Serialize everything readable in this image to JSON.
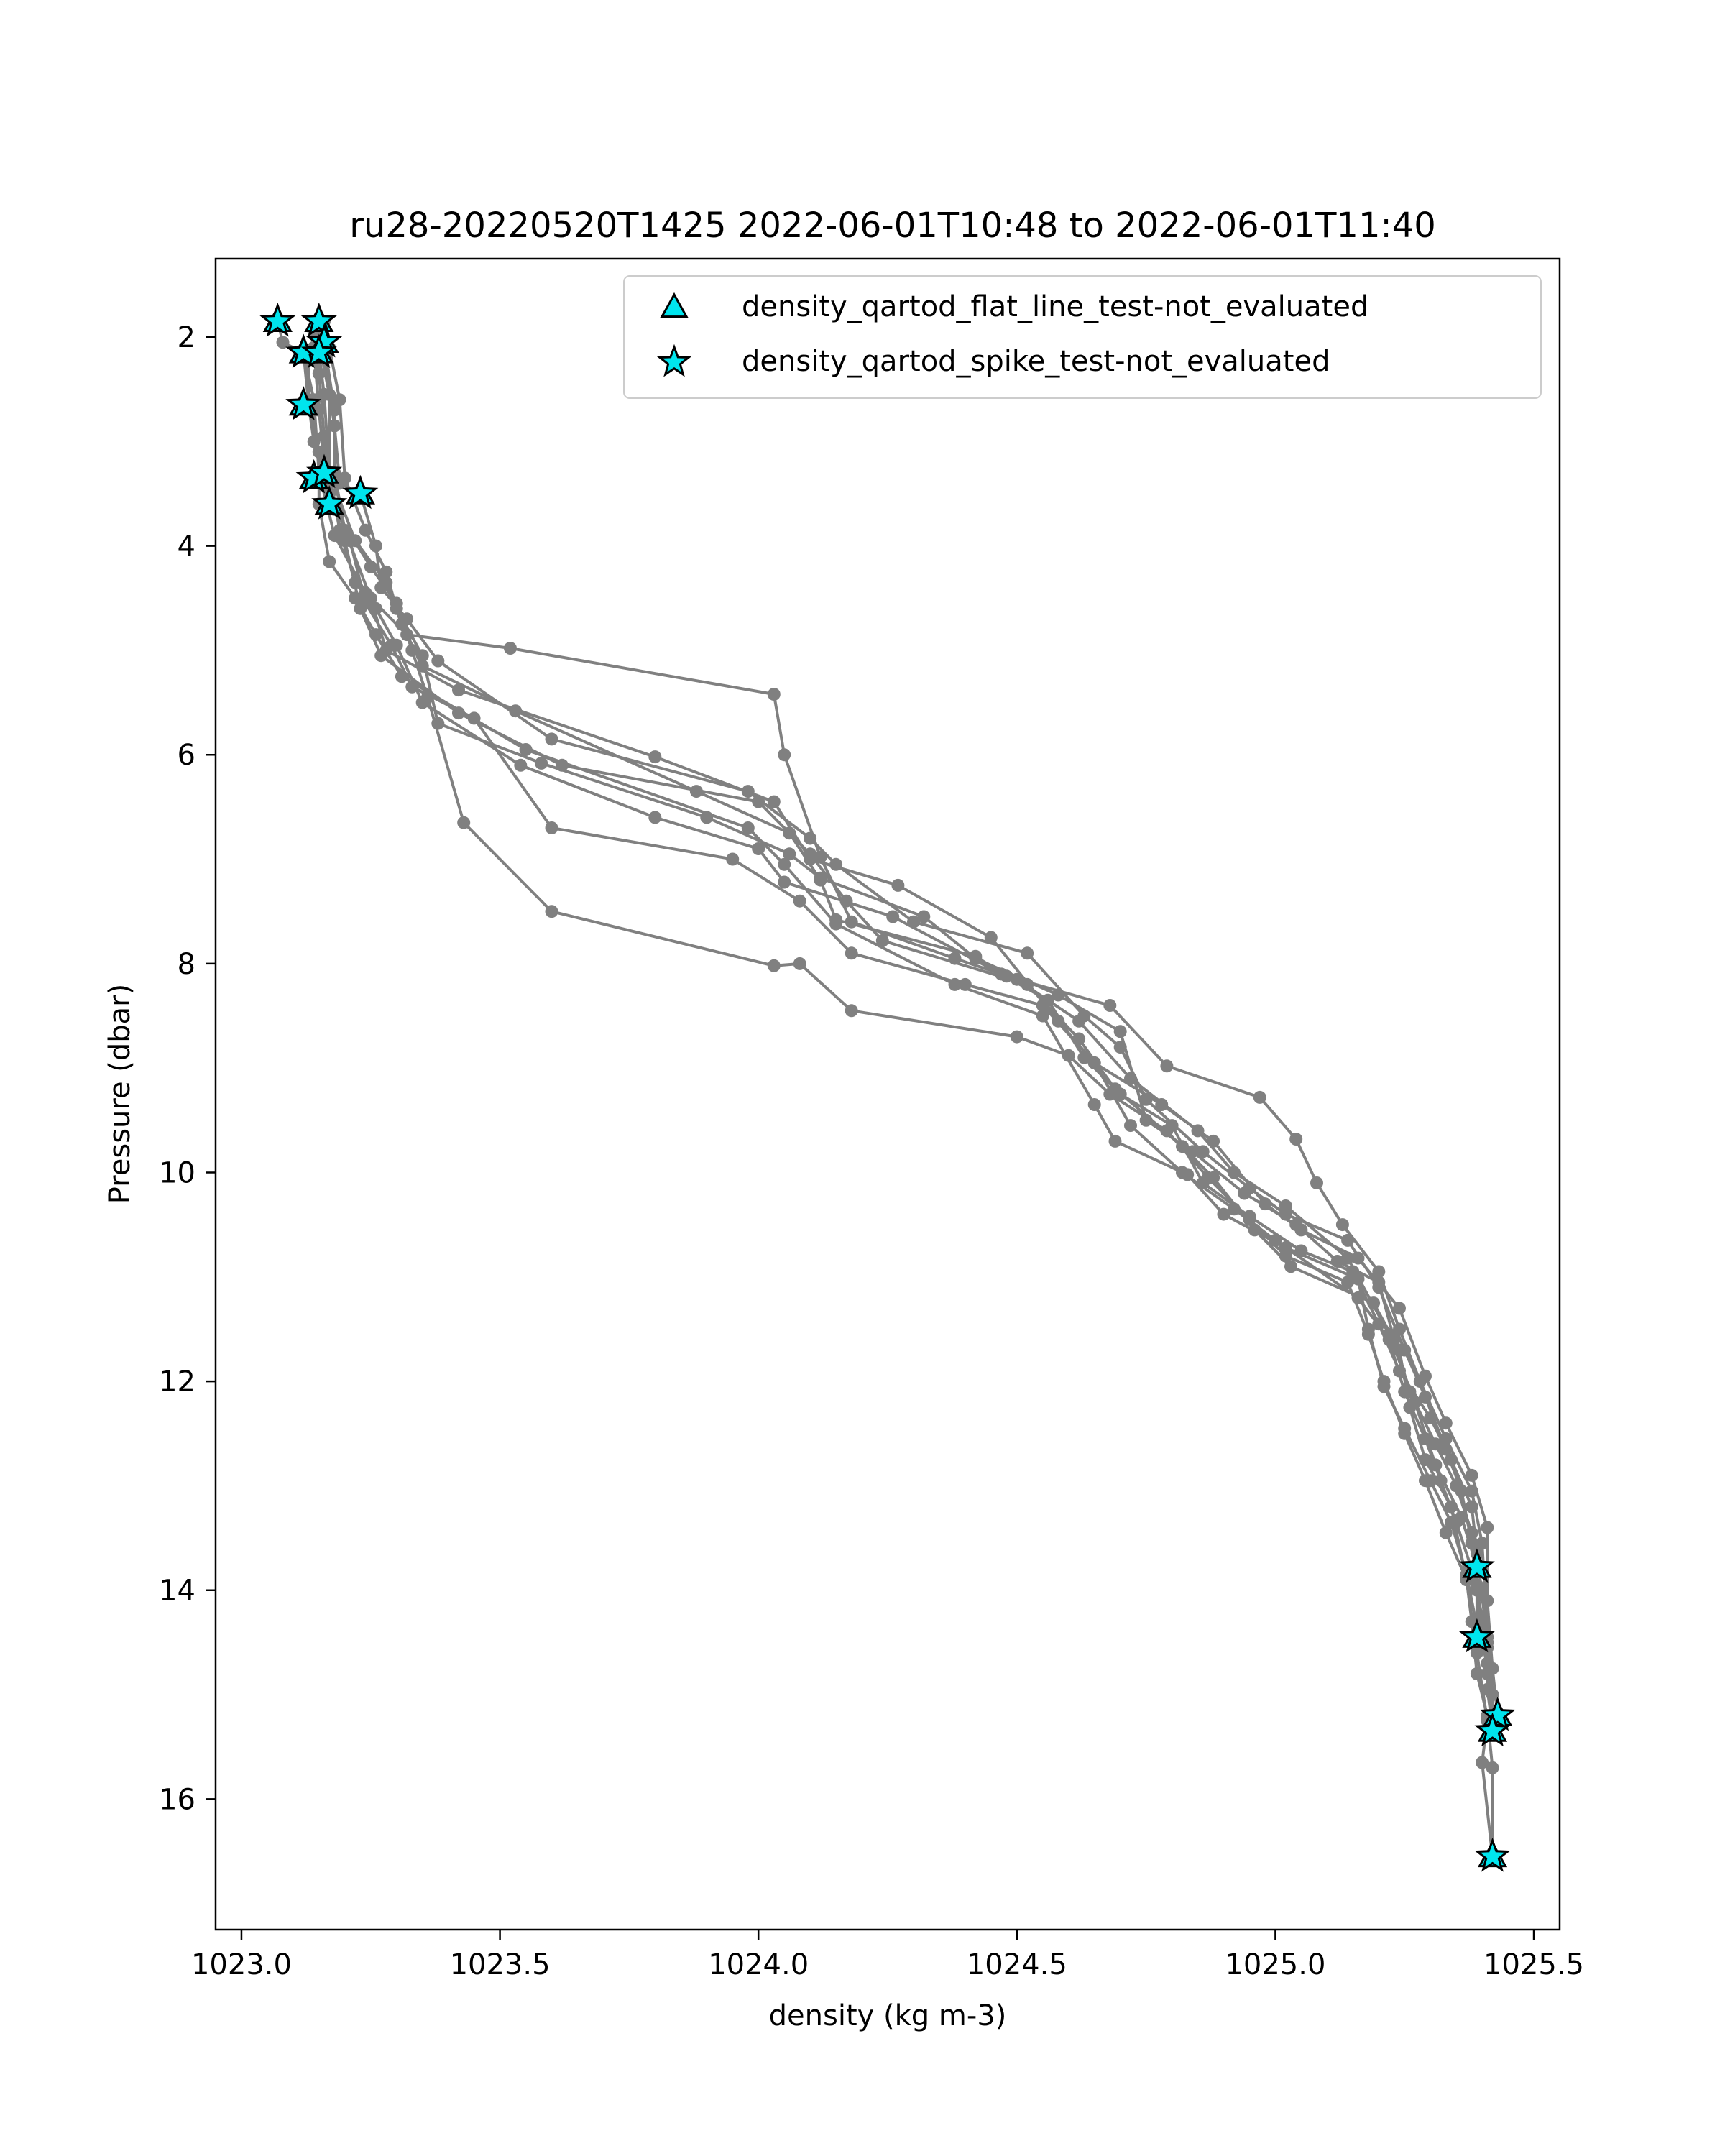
{
  "chart_data": {
    "type": "line",
    "title": "ru28-20220520T1425 2022-06-01T10:48 to 2022-06-01T11:40",
    "xlabel": "density (kg m-3)",
    "ylabel": "Pressure (dbar)",
    "xlim": [
      1022.95,
      1025.55
    ],
    "ylim": [
      17.25,
      1.25
    ],
    "y_inverted": true,
    "xticks": [
      1023.0,
      1023.5,
      1024.0,
      1024.5,
      1025.0,
      1025.5
    ],
    "xtick_labels": [
      "1023.0",
      "1023.5",
      "1024.0",
      "1024.5",
      "1025.0",
      "1025.5"
    ],
    "yticks": [
      2,
      4,
      6,
      8,
      10,
      12,
      14,
      16
    ],
    "ytick_labels": [
      "2",
      "4",
      "6",
      "8",
      "10",
      "12",
      "14",
      "16"
    ],
    "grid": false,
    "legend_position": "top-right",
    "colors": {
      "profile": "#808080",
      "marker_fill": "#00e5ee",
      "marker_edge": "#000000"
    },
    "legend": [
      {
        "label": "density_qartod_flat_line_test-not_evaluated",
        "marker": "triangle"
      },
      {
        "label": "density_qartod_spike_test-not_evaluated",
        "marker": "star"
      }
    ],
    "profiles": [
      [
        [
          1023.07,
          1.85
        ],
        [
          1023.08,
          2.05
        ],
        [
          1023.12,
          2.15
        ],
        [
          1023.14,
          2.6
        ],
        [
          1023.15,
          3.3
        ],
        [
          1023.18,
          3.9
        ],
        [
          1023.24,
          4.45
        ],
        [
          1023.32,
          4.85
        ],
        [
          1023.52,
          4.98
        ],
        [
          1024.03,
          5.42
        ],
        [
          1024.05,
          6.0
        ],
        [
          1024.12,
          6.98
        ],
        [
          1024.18,
          7.6
        ],
        [
          1024.38,
          7.95
        ],
        [
          1024.5,
          8.15
        ],
        [
          1024.62,
          8.55
        ],
        [
          1024.72,
          9.1
        ],
        [
          1024.85,
          9.6
        ],
        [
          1024.92,
          10.0
        ],
        [
          1025.02,
          10.32
        ],
        [
          1025.14,
          10.82
        ],
        [
          1025.22,
          11.55
        ],
        [
          1025.27,
          12.2
        ],
        [
          1025.31,
          12.8
        ],
        [
          1025.36,
          13.3
        ],
        [
          1025.39,
          13.78
        ],
        [
          1025.39,
          14.45
        ]
      ],
      [
        [
          1023.15,
          1.85
        ],
        [
          1023.16,
          2.05
        ],
        [
          1023.18,
          2.7
        ],
        [
          1023.18,
          3.3
        ],
        [
          1023.2,
          3.85
        ],
        [
          1023.25,
          4.5
        ],
        [
          1023.28,
          5.0
        ],
        [
          1023.42,
          5.38
        ],
        [
          1023.8,
          6.02
        ],
        [
          1024.03,
          6.45
        ],
        [
          1024.1,
          7.0
        ],
        [
          1024.27,
          7.25
        ],
        [
          1024.45,
          7.75
        ],
        [
          1024.58,
          8.55
        ],
        [
          1024.65,
          8.95
        ],
        [
          1024.78,
          9.35
        ],
        [
          1024.88,
          9.7
        ],
        [
          1024.98,
          10.3
        ],
        [
          1025.05,
          10.55
        ],
        [
          1025.16,
          10.82
        ],
        [
          1025.24,
          11.3
        ],
        [
          1025.29,
          11.95
        ],
        [
          1025.33,
          12.4
        ],
        [
          1025.38,
          12.9
        ],
        [
          1025.41,
          13.4
        ],
        [
          1025.41,
          14.1
        ],
        [
          1025.42,
          14.75
        ],
        [
          1025.43,
          15.2
        ]
      ],
      [
        [
          1023.15,
          2.15
        ],
        [
          1023.16,
          2.55
        ],
        [
          1023.17,
          3.3
        ],
        [
          1023.22,
          3.95
        ],
        [
          1023.28,
          4.35
        ],
        [
          1023.31,
          4.75
        ],
        [
          1023.35,
          5.15
        ],
        [
          1023.53,
          5.58
        ],
        [
          1023.88,
          6.35
        ],
        [
          1024.06,
          6.75
        ],
        [
          1024.12,
          7.2
        ],
        [
          1024.15,
          7.58
        ],
        [
          1024.42,
          7.93
        ],
        [
          1024.48,
          8.12
        ],
        [
          1024.68,
          8.4
        ],
        [
          1024.79,
          8.98
        ],
        [
          1024.97,
          9.28
        ],
        [
          1025.04,
          9.68
        ],
        [
          1025.08,
          10.1
        ],
        [
          1025.13,
          10.5
        ],
        [
          1025.2,
          10.95
        ],
        [
          1025.24,
          11.5
        ],
        [
          1025.28,
          12.0
        ],
        [
          1025.33,
          12.55
        ],
        [
          1025.38,
          13.05
        ],
        [
          1025.4,
          13.55
        ],
        [
          1025.41,
          14.45
        ],
        [
          1025.42,
          15.0
        ],
        [
          1025.42,
          15.35
        ]
      ],
      [
        [
          1023.12,
          2.15
        ],
        [
          1023.13,
          2.65
        ],
        [
          1023.14,
          3.0
        ],
        [
          1023.16,
          3.35
        ],
        [
          1023.2,
          3.95
        ],
        [
          1023.23,
          4.6
        ],
        [
          1023.27,
          5.05
        ],
        [
          1023.42,
          5.6
        ],
        [
          1023.62,
          6.1
        ],
        [
          1024.0,
          6.45
        ],
        [
          1024.1,
          6.95
        ],
        [
          1024.17,
          7.4
        ],
        [
          1024.24,
          7.78
        ],
        [
          1024.52,
          8.2
        ],
        [
          1024.62,
          8.72
        ],
        [
          1024.69,
          9.2
        ],
        [
          1024.82,
          9.75
        ],
        [
          1024.88,
          10.05
        ],
        [
          1024.96,
          10.55
        ],
        [
          1025.03,
          10.9
        ],
        [
          1025.19,
          11.25
        ],
        [
          1025.24,
          11.7
        ],
        [
          1025.26,
          12.25
        ],
        [
          1025.29,
          12.75
        ],
        [
          1025.34,
          13.2
        ],
        [
          1025.37,
          13.9
        ],
        [
          1025.39,
          14.6
        ],
        [
          1025.41,
          15.25
        ],
        [
          1025.4,
          15.65
        ],
        [
          1025.42,
          16.55
        ]
      ],
      [
        [
          1023.13,
          2.2
        ],
        [
          1023.13,
          2.6
        ],
        [
          1023.15,
          3.1
        ],
        [
          1023.15,
          3.6
        ],
        [
          1023.17,
          4.15
        ],
        [
          1023.22,
          4.5
        ],
        [
          1023.26,
          4.85
        ],
        [
          1023.31,
          5.25
        ],
        [
          1023.55,
          5.95
        ],
        [
          1023.98,
          6.7
        ],
        [
          1024.05,
          7.05
        ],
        [
          1024.15,
          7.62
        ],
        [
          1024.38,
          8.2
        ],
        [
          1024.55,
          8.5
        ],
        [
          1024.65,
          9.35
        ],
        [
          1024.69,
          9.7
        ],
        [
          1024.83,
          10.02
        ],
        [
          1024.9,
          10.4
        ],
        [
          1025.02,
          10.72
        ],
        [
          1025.16,
          11.02
        ],
        [
          1025.18,
          11.5
        ],
        [
          1025.21,
          12.05
        ],
        [
          1025.25,
          12.45
        ],
        [
          1025.3,
          12.95
        ],
        [
          1025.34,
          13.35
        ],
        [
          1025.37,
          13.85
        ],
        [
          1025.39,
          14.35
        ],
        [
          1025.41,
          14.7
        ],
        [
          1025.42,
          15.35
        ]
      ],
      [
        [
          1023.15,
          2.05
        ],
        [
          1023.17,
          2.55
        ],
        [
          1023.17,
          3.3
        ],
        [
          1023.19,
          3.85
        ],
        [
          1023.22,
          4.35
        ],
        [
          1023.26,
          4.6
        ],
        [
          1023.3,
          4.95
        ],
        [
          1023.35,
          5.5
        ],
        [
          1023.54,
          6.1
        ],
        [
          1023.8,
          6.6
        ],
        [
          1024.0,
          6.9
        ],
        [
          1024.05,
          7.22
        ],
        [
          1024.26,
          7.55
        ],
        [
          1024.47,
          8.1
        ],
        [
          1024.56,
          8.35
        ],
        [
          1024.63,
          8.9
        ],
        [
          1024.7,
          9.25
        ],
        [
          1024.8,
          9.55
        ],
        [
          1024.86,
          10.1
        ],
        [
          1024.95,
          10.42
        ],
        [
          1025.05,
          10.75
        ],
        [
          1025.15,
          10.95
        ],
        [
          1025.2,
          11.45
        ],
        [
          1025.24,
          11.9
        ],
        [
          1025.3,
          12.35
        ],
        [
          1025.34,
          12.75
        ],
        [
          1025.38,
          13.2
        ],
        [
          1025.39,
          13.65
        ],
        [
          1025.4,
          14.05
        ],
        [
          1025.41,
          14.5
        ],
        [
          1025.41,
          14.95
        ],
        [
          1025.42,
          15.3
        ]
      ],
      [
        [
          1023.16,
          1.85
        ],
        [
          1023.17,
          2.1
        ],
        [
          1023.19,
          2.6
        ],
        [
          1023.2,
          3.35
        ],
        [
          1023.24,
          3.85
        ],
        [
          1023.28,
          4.25
        ],
        [
          1023.3,
          4.6
        ],
        [
          1023.35,
          5.05
        ],
        [
          1023.38,
          5.7
        ],
        [
          1023.58,
          6.08
        ],
        [
          1023.9,
          6.6
        ],
        [
          1024.06,
          6.95
        ],
        [
          1024.12,
          7.18
        ],
        [
          1024.32,
          7.55
        ],
        [
          1024.42,
          7.95
        ],
        [
          1024.58,
          8.3
        ],
        [
          1024.7,
          8.65
        ],
        [
          1024.75,
          9.5
        ],
        [
          1024.84,
          9.8
        ],
        [
          1024.94,
          10.2
        ],
        [
          1025.04,
          10.5
        ],
        [
          1025.12,
          10.85
        ],
        [
          1025.2,
          11.05
        ],
        [
          1025.23,
          11.6
        ],
        [
          1025.26,
          12.1
        ],
        [
          1025.31,
          12.6
        ],
        [
          1025.35,
          13.0
        ],
        [
          1025.38,
          13.45
        ],
        [
          1025.39,
          13.95
        ],
        [
          1025.4,
          14.4
        ]
      ],
      [
        [
          1023.16,
          2.2
        ],
        [
          1023.18,
          2.85
        ],
        [
          1023.19,
          3.4
        ],
        [
          1023.23,
          3.5
        ],
        [
          1023.26,
          4.0
        ],
        [
          1023.27,
          4.4
        ],
        [
          1023.32,
          4.7
        ],
        [
          1023.38,
          5.1
        ],
        [
          1023.6,
          5.85
        ],
        [
          1023.98,
          6.35
        ],
        [
          1024.1,
          6.8
        ],
        [
          1024.15,
          7.05
        ],
        [
          1024.3,
          7.6
        ],
        [
          1024.52,
          7.9
        ],
        [
          1024.63,
          8.5
        ],
        [
          1024.7,
          8.8
        ],
        [
          1024.75,
          9.3
        ],
        [
          1024.86,
          9.8
        ],
        [
          1024.95,
          10.15
        ],
        [
          1025.02,
          10.4
        ],
        [
          1025.14,
          10.65
        ],
        [
          1025.2,
          11.1
        ],
        [
          1025.25,
          11.7
        ],
        [
          1025.29,
          12.15
        ],
        [
          1025.33,
          12.65
        ],
        [
          1025.36,
          13.05
        ],
        [
          1025.38,
          13.55
        ],
        [
          1025.39,
          14.0
        ],
        [
          1025.41,
          14.55
        ]
      ],
      [
        [
          1023.14,
          1.95
        ],
        [
          1023.15,
          2.35
        ],
        [
          1023.16,
          2.95
        ],
        [
          1023.17,
          3.5
        ],
        [
          1023.21,
          3.95
        ],
        [
          1023.24,
          4.55
        ],
        [
          1023.29,
          4.95
        ],
        [
          1023.33,
          5.35
        ],
        [
          1023.45,
          5.65
        ],
        [
          1023.6,
          6.7
        ],
        [
          1023.95,
          7.0
        ],
        [
          1024.08,
          7.4
        ],
        [
          1024.18,
          7.9
        ],
        [
          1024.4,
          8.2
        ],
        [
          1024.55,
          8.4
        ],
        [
          1024.65,
          8.95
        ],
        [
          1024.72,
          9.55
        ],
        [
          1024.82,
          10.0
        ],
        [
          1024.92,
          10.35
        ],
        [
          1025.0,
          10.65
        ],
        [
          1025.16,
          11.2
        ],
        [
          1025.22,
          11.6
        ],
        [
          1025.25,
          12.1
        ],
        [
          1025.29,
          12.55
        ],
        [
          1025.32,
          12.95
        ],
        [
          1025.35,
          13.35
        ],
        [
          1025.38,
          13.8
        ],
        [
          1025.4,
          14.25
        ],
        [
          1025.41,
          14.8
        ],
        [
          1025.42,
          15.3
        ]
      ],
      [
        [
          1023.14,
          2.1
        ],
        [
          1023.15,
          2.7
        ],
        [
          1023.16,
          3.2
        ],
        [
          1023.18,
          3.65
        ],
        [
          1023.25,
          4.2
        ],
        [
          1023.3,
          4.55
        ],
        [
          1023.33,
          5.0
        ],
        [
          1023.36,
          5.45
        ],
        [
          1023.43,
          6.65
        ],
        [
          1023.6,
          7.5
        ],
        [
          1024.03,
          8.02
        ],
        [
          1024.08,
          8.0
        ],
        [
          1024.18,
          8.45
        ],
        [
          1024.5,
          8.7
        ],
        [
          1024.6,
          8.88
        ],
        [
          1024.68,
          9.25
        ],
        [
          1024.79,
          9.6
        ],
        [
          1024.87,
          10.05
        ],
        [
          1024.95,
          10.45
        ],
        [
          1025.02,
          10.8
        ],
        [
          1025.14,
          11.05
        ],
        [
          1025.18,
          11.55
        ],
        [
          1025.21,
          12.0
        ],
        [
          1025.25,
          12.5
        ],
        [
          1025.29,
          12.95
        ],
        [
          1025.33,
          13.45
        ],
        [
          1025.37,
          13.9
        ],
        [
          1025.38,
          14.3
        ],
        [
          1025.39,
          14.8
        ],
        [
          1025.41,
          15.2
        ],
        [
          1025.42,
          15.7
        ],
        [
          1025.42,
          16.55
        ]
      ]
    ],
    "flat_line_not_evaluated": [
      [
        1023.07,
        1.85
      ],
      [
        1023.15,
        1.85
      ],
      [
        1023.16,
        2.05
      ],
      [
        1023.12,
        2.15
      ],
      [
        1023.15,
        2.15
      ],
      [
        1023.12,
        2.65
      ],
      [
        1023.14,
        3.35
      ],
      [
        1023.16,
        3.3
      ],
      [
        1023.23,
        3.5
      ],
      [
        1023.17,
        3.6
      ],
      [
        1025.39,
        13.78
      ],
      [
        1025.39,
        14.45
      ],
      [
        1025.43,
        15.2
      ],
      [
        1025.42,
        15.35
      ],
      [
        1025.42,
        16.55
      ]
    ],
    "spike_not_evaluated": [
      [
        1023.07,
        1.85
      ],
      [
        1023.15,
        1.85
      ],
      [
        1023.16,
        2.05
      ],
      [
        1023.12,
        2.15
      ],
      [
        1023.15,
        2.15
      ],
      [
        1023.12,
        2.65
      ],
      [
        1023.14,
        3.35
      ],
      [
        1023.16,
        3.3
      ],
      [
        1023.23,
        3.5
      ],
      [
        1023.17,
        3.6
      ],
      [
        1025.39,
        13.78
      ],
      [
        1025.39,
        14.45
      ],
      [
        1025.43,
        15.2
      ],
      [
        1025.42,
        15.35
      ],
      [
        1025.42,
        16.55
      ]
    ]
  }
}
